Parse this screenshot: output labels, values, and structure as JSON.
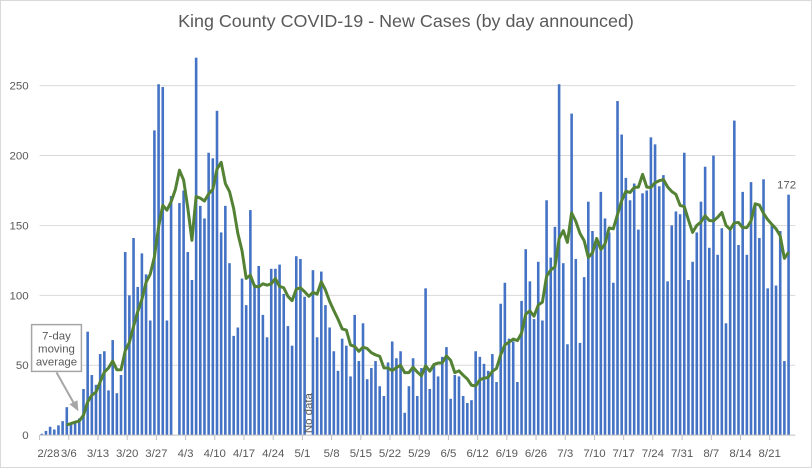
{
  "chart_data": {
    "type": "bar",
    "title": "King County COVID-19 - New Cases (by day announced)",
    "xlabel": "",
    "ylabel": "",
    "ylim": [
      0,
      270
    ],
    "y_ticks": [
      "0",
      "50",
      "100",
      "150",
      "200",
      "250"
    ],
    "y_tick_values": [
      0,
      50,
      100,
      150,
      200,
      250
    ],
    "grid": true,
    "start_date": "2/28",
    "x_tick_labels": [
      "2/28",
      "3/6",
      "3/13",
      "3/20",
      "3/27",
      "4/3",
      "4/10",
      "4/17",
      "4/24",
      "5/1",
      "5/8",
      "5/15",
      "5/22",
      "5/29",
      "6/5",
      "6/12",
      "6/19",
      "6/26",
      "7/3",
      "7/10",
      "7/17",
      "7/24",
      "7/31",
      "8/7",
      "8/14",
      "8/21"
    ],
    "series": [
      {
        "name": "New Cases",
        "color": "#4472c4",
        "values": [
          1,
          3,
          6,
          4,
          7,
          10,
          20,
          8,
          10,
          12,
          33,
          74,
          43,
          36,
          58,
          60,
          32,
          68,
          30,
          43,
          131,
          100,
          141,
          106,
          130,
          115,
          82,
          218,
          251,
          249,
          82,
          171,
          null,
          166,
          175,
          131,
          111,
          270,
          164,
          155,
          202,
          198,
          232,
          145,
          164,
          123,
          71,
          77,
          112,
          93,
          161,
          108,
          121,
          86,
          70,
          119,
          119,
          122,
          101,
          78,
          64,
          128,
          126,
          99,
          null,
          118,
          70,
          117,
          93,
          77,
          60,
          46,
          69,
          64,
          42,
          86,
          53,
          80,
          40,
          48,
          53,
          35,
          28,
          52,
          67,
          55,
          60,
          16,
          35,
          55,
          28,
          48,
          105,
          33,
          50,
          42,
          56,
          63,
          26,
          43,
          42,
          28,
          23,
          25,
          60,
          56,
          51,
          46,
          58,
          38,
          94,
          109,
          69,
          67,
          38,
          96,
          133,
          110,
          83,
          124,
          82,
          168,
          127,
          149,
          251,
          123,
          65,
          230,
          126,
          66,
          113,
          167,
          146,
          137,
          174,
          155,
          145,
          109,
          239,
          215,
          184,
          168,
          180,
          147,
          173,
          175,
          213,
          208,
          178,
          186,
          110,
          150,
          160,
          158,
          202,
          111,
          124,
          145,
          167,
          192,
          134,
          200,
          129,
          148,
          80,
          147,
          225,
          136,
          174,
          129,
          181,
          166,
          141,
          183,
          105,
          150,
          107,
          146,
          53,
          172
        ]
      },
      {
        "name": "7-day moving average",
        "color": "#548235",
        "window": 7
      }
    ],
    "annotations": {
      "moving_average_callout": [
        "7-day",
        "moving",
        "average"
      ],
      "no_data_label": "No data",
      "no_data_date": "5/2",
      "last_value_label": "172"
    }
  }
}
